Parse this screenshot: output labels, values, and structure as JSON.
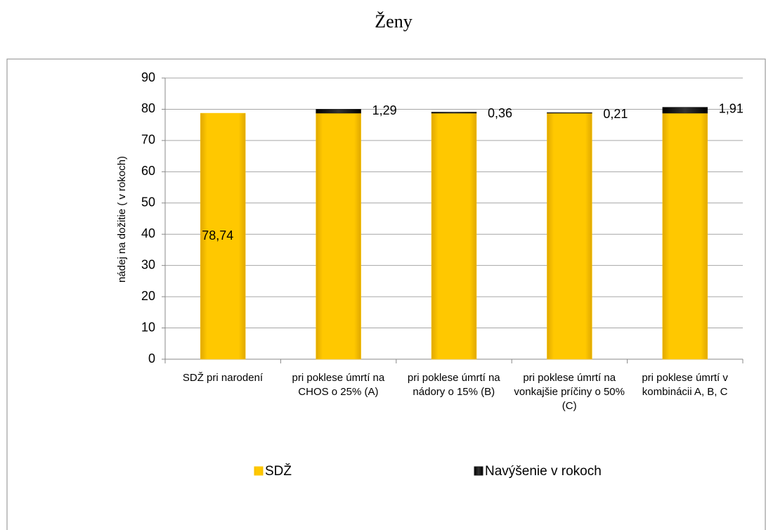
{
  "chart_data": {
    "type": "stacked_bar",
    "title": "Ženy",
    "y_label": "nádej na dožitie ( v rokoch)",
    "categories": [
      "SDŽ pri narodení",
      "pri poklese úmrtí na CHOS o 25% (A)",
      "pri poklese úmrtí na nádory o 15% (B)",
      "pri poklese úmrtí na vonkajšie príčiny o 50% (C)",
      "pri poklese  úmrtí v kombinácii A, B, C"
    ],
    "series": [
      {
        "name": "SDŽ",
        "color": "#ffc800",
        "values": [
          78.74,
          78.74,
          78.74,
          78.74,
          78.74
        ],
        "value_labels": [
          "78,74",
          null,
          null,
          null,
          null
        ]
      },
      {
        "name": "Navýšenie v rokoch",
        "color": "#1a1a1a",
        "values": [
          null,
          1.29,
          0.36,
          0.21,
          1.91
        ],
        "value_labels": [
          null,
          "1,29",
          "0,36",
          "0,21",
          "1,91"
        ]
      }
    ],
    "ylim": [
      0,
      90
    ],
    "yticks": [
      0,
      10,
      20,
      30,
      40,
      50,
      60,
      70,
      80,
      90
    ],
    "grid": true,
    "legend": "bottom"
  }
}
